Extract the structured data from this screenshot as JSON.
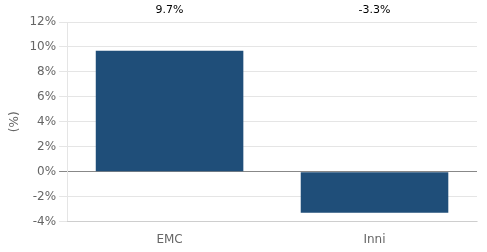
{
  "chart_data": {
    "type": "bar",
    "categories": [
      "EMC",
      "Inni"
    ],
    "values": [
      9.7,
      -3.3
    ],
    "value_labels": [
      "9.7%",
      "-3.3%"
    ],
    "data_labels": true,
    "color": "#1F4E79",
    "ylabel": "(%)",
    "ylim": [
      -4,
      12
    ],
    "yticks": [
      {
        "value": -4,
        "label": "-4%"
      },
      {
        "value": -2,
        "label": "-2%"
      },
      {
        "value": 0,
        "label": "0%"
      },
      {
        "value": 2,
        "label": "2%"
      },
      {
        "value": 4,
        "label": "4%"
      },
      {
        "value": 6,
        "label": "6%"
      },
      {
        "value": 8,
        "label": "8%"
      },
      {
        "value": 10,
        "label": "10%"
      },
      {
        "value": 12,
        "label": "12%"
      }
    ],
    "grid": true
  }
}
